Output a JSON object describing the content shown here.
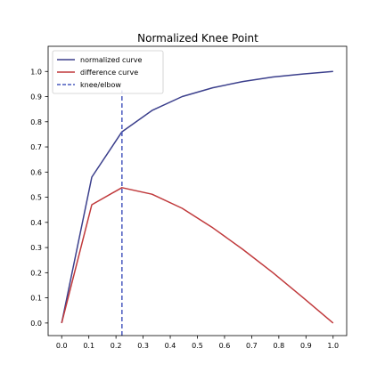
{
  "chart_data": {
    "type": "line",
    "title": "Normalized Knee Point",
    "xlabel": "",
    "ylabel": "",
    "xlim": [
      -0.05,
      1.05
    ],
    "ylim": [
      -0.05,
      1.1
    ],
    "xticks": [
      0.0,
      0.1,
      0.2,
      0.3,
      0.4,
      0.5,
      0.6,
      0.7,
      0.8,
      0.9,
      1.0
    ],
    "yticks": [
      0.0,
      0.1,
      0.2,
      0.3,
      0.4,
      0.5,
      0.6,
      0.7,
      0.8,
      0.9,
      1.0
    ],
    "xtick_labels": [
      "0.0",
      "0.1",
      "0.2",
      "0.3",
      "0.4",
      "0.5",
      "0.6",
      "0.7",
      "0.8",
      "0.9",
      "1.0"
    ],
    "ytick_labels": [
      "0.0",
      "0.1",
      "0.2",
      "0.3",
      "0.4",
      "0.5",
      "0.6",
      "0.7",
      "0.8",
      "0.9",
      "1.0"
    ],
    "grid": false,
    "legend_position": "top-left",
    "series": [
      {
        "name": "normalized curve",
        "color": "#3b3f8c",
        "style": "solid",
        "x": [
          0.0,
          0.111,
          0.222,
          0.333,
          0.444,
          0.556,
          0.667,
          0.778,
          0.889,
          1.0
        ],
        "y": [
          0.0,
          0.58,
          0.76,
          0.845,
          0.9,
          0.935,
          0.96,
          0.978,
          0.99,
          1.0
        ]
      },
      {
        "name": "difference curve",
        "color": "#c0393b",
        "style": "solid",
        "x": [
          0.0,
          0.111,
          0.222,
          0.333,
          0.444,
          0.556,
          0.667,
          0.778,
          0.889,
          1.0
        ],
        "y": [
          0.0,
          0.47,
          0.538,
          0.512,
          0.456,
          0.379,
          0.293,
          0.2,
          0.101,
          0.0
        ]
      }
    ],
    "vlines": [
      {
        "name": "knee/elbow",
        "color": "#4a5bbf",
        "style": "dashed",
        "x": 0.222,
        "ymin": -0.05,
        "ymax": 0.925
      }
    ]
  }
}
